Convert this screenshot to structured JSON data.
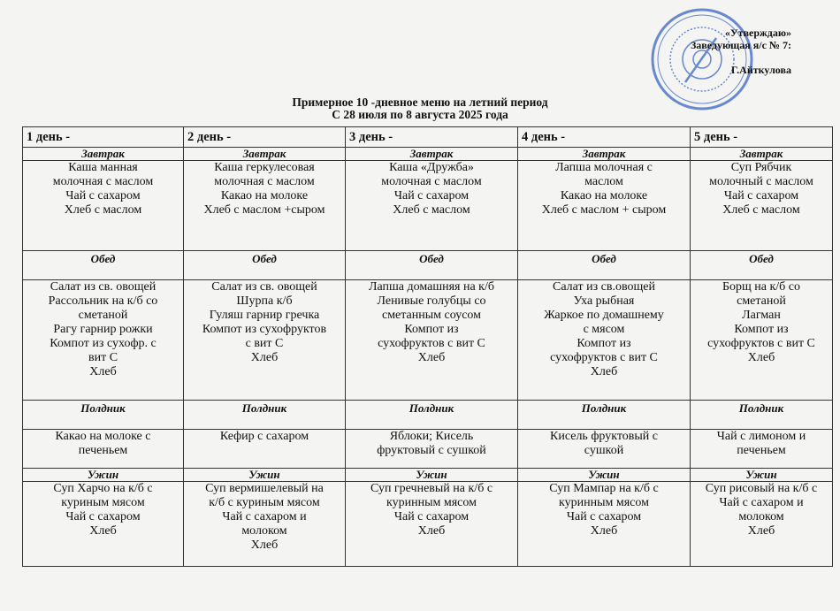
{
  "approval": {
    "line1": "«Утверждаю»",
    "line2": "Заведующая я/с № 7:",
    "line3": "Г.Айткулова"
  },
  "stamp": {
    "icon": "official-round-stamp",
    "color": "#3a66c4"
  },
  "title": {
    "line1": "Примерное 10 -дневное меню на летний период",
    "line2": "С 28 июля по 8 августа 2025 года"
  },
  "days": [
    "1 день -",
    "2 день -",
    "3 день -",
    "4 день -",
    "5 день -"
  ],
  "meals": [
    {
      "label": "Завтрак",
      "items": [
        [
          "Каша манная",
          "молочная с маслом",
          "Чай с сахаром",
          "Хлеб с маслом"
        ],
        [
          "Каша геркулесовая",
          "молочная с маслом",
          "Какао на молоке",
          "Хлеб с маслом +сыром"
        ],
        [
          "Каша «Дружба»",
          "молочная с маслом",
          "Чай с сахаром",
          "Хлеб с маслом"
        ],
        [
          "Лапша молочная с",
          "маслом",
          "Какао на молоке",
          "Хлеб с маслом + сыром"
        ],
        [
          "Суп Рябчик",
          "молочный с маслом",
          "Чай с сахаром",
          "Хлеб с маслом"
        ]
      ]
    },
    {
      "label": "Обед",
      "items": [
        [
          "Салат из св. овощей",
          "Рассольник на к/б со",
          "сметаной",
          "Рагу гарнир рожки",
          "Компот из сухофр. с",
          "вит С",
          "Хлеб"
        ],
        [
          "Салат из св. овощей",
          "Шурпа к/б",
          "Гуляш гарнир гречка",
          "Компот из сухофруктов",
          "с вит С",
          "Хлеб"
        ],
        [
          "Лапша домашняя на к/б",
          "Ленивые голубцы со",
          "сметанным соусом",
          "Компот из",
          "сухофруктов с вит С",
          "Хлеб"
        ],
        [
          "Салат из св.овощей",
          "Уха рыбная",
          "Жаркое по домашнему",
          "с мясом",
          "Компот из",
          "сухофруктов с вит С",
          "Хлеб"
        ],
        [
          "Борщ на к/б со",
          "сметаной",
          "Лагман",
          "Компот из",
          "сухофруктов с вит С",
          "Хлеб"
        ]
      ]
    },
    {
      "label": "Полдник",
      "items": [
        [
          "Какао на молоке с",
          "печеньем"
        ],
        [
          "Кефир с сахаром"
        ],
        [
          "Яблоки; Кисель",
          "фруктовый с сушкой"
        ],
        [
          "Кисель фруктовый с",
          "сушкой"
        ],
        [
          "Чай с лимоном и",
          "печеньем"
        ]
      ]
    },
    {
      "label": "Ужин",
      "items": [
        [
          "Суп Харчо на к/б с",
          "куриным мясом",
          "Чай с сахаром",
          "Хлеб"
        ],
        [
          "Суп вермишелевый на",
          "к/б с куриным мясом",
          "Чай с сахаром и",
          "молоком",
          "Хлеб"
        ],
        [
          "Суп гречневый на к/б с",
          "куринным мясом",
          "Чай с сахаром",
          "Хлеб"
        ],
        [
          "Суп Мампар на к/б с",
          "куринным мясом",
          "Чай с сахаром",
          "Хлеб"
        ],
        [
          "Суп рисовый на к/б с",
          "Чай с сахаром и",
          "молоком",
          "Хлеб"
        ]
      ]
    }
  ]
}
